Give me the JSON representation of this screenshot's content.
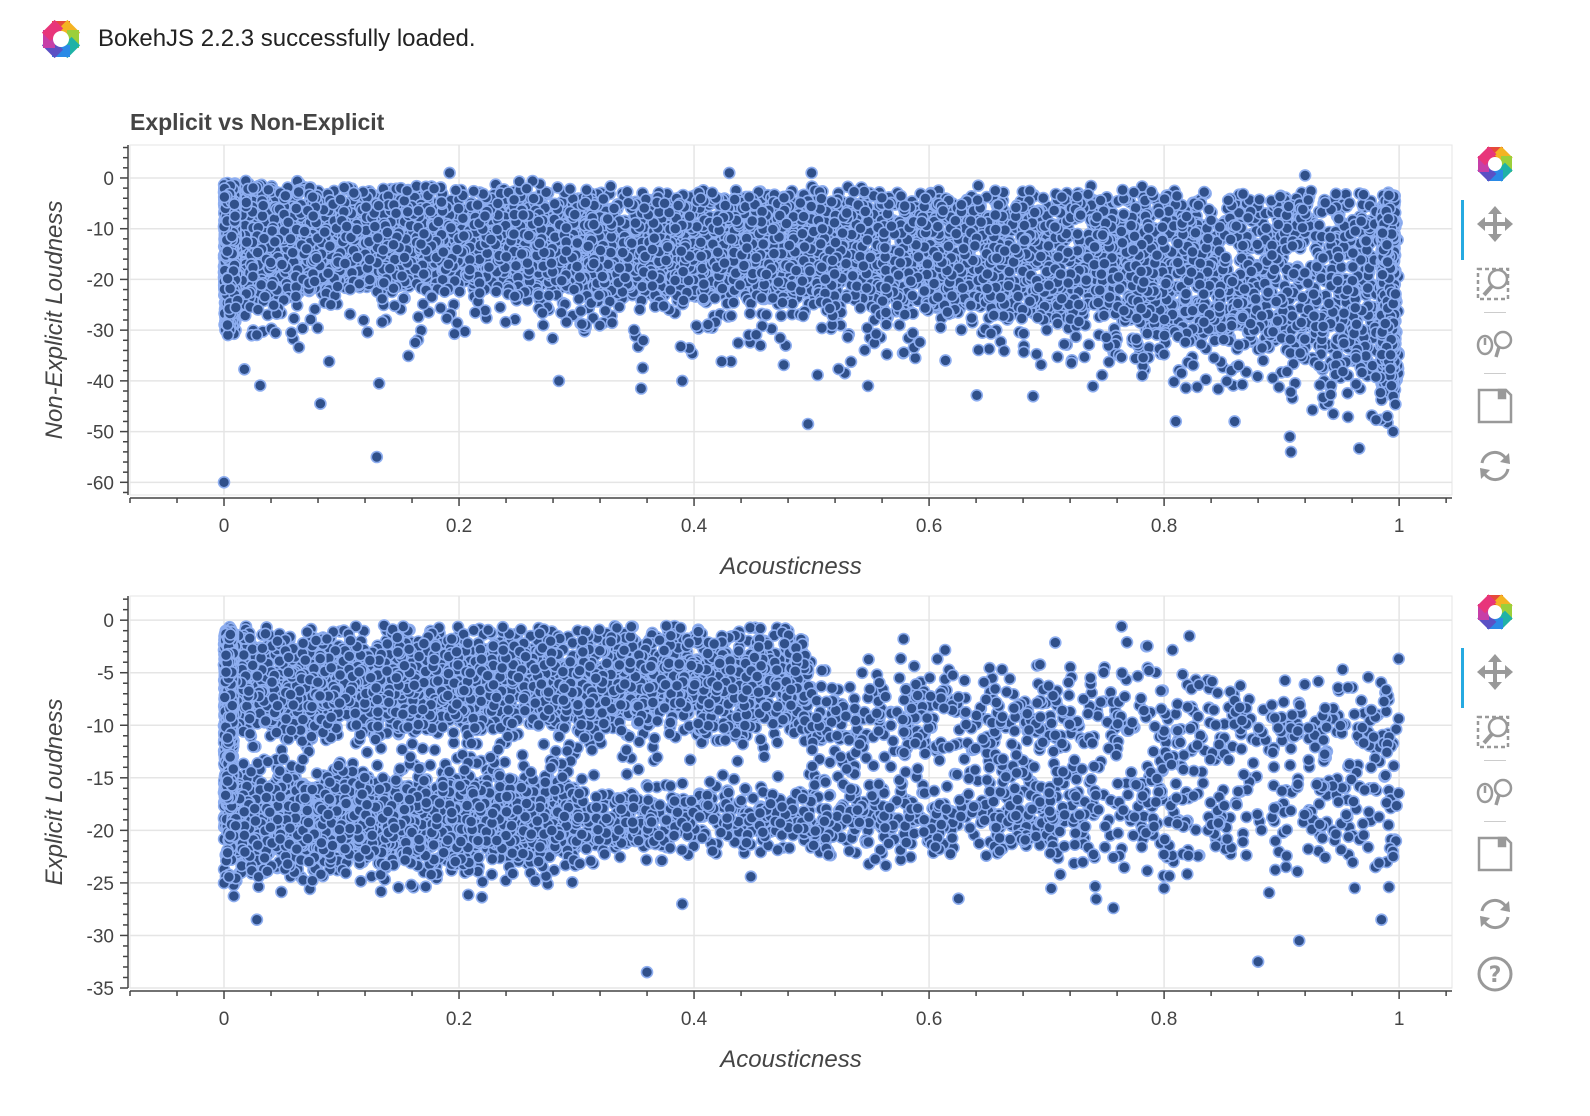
{
  "banner": {
    "message": "BokehJS 2.2.3 successfully loaded."
  },
  "colors": {
    "point_fill": "#30508a",
    "point_line": "#8eaef0",
    "grid": "#e5e5e5",
    "axis": "#444444",
    "tool_active": "#26aae1"
  },
  "toolbar_icons": [
    "bokeh-logo-icon",
    "pan-icon",
    "box-zoom-icon",
    "wheel-zoom-icon",
    "save-icon",
    "reset-icon"
  ],
  "toolbar_icons_bottom": [
    "bokeh-logo-icon",
    "pan-icon",
    "box-zoom-icon",
    "wheel-zoom-icon",
    "save-icon",
    "reset-icon",
    "help-icon"
  ],
  "chart_data": [
    {
      "type": "scatter",
      "title": "Explicit vs Non-Explicit",
      "xlabel": "Acousticness",
      "ylabel": "Non-Explicit Loudness",
      "xlim": [
        -0.08,
        1.045
      ],
      "ylim": [
        -62.5,
        6.5
      ],
      "xticks": [
        0,
        0.2,
        0.4,
        0.6,
        0.8,
        1
      ],
      "xtick_labels": [
        "0",
        "0.2",
        "0.4",
        "0.6",
        "0.8",
        "1"
      ],
      "yticks": [
        0,
        -10,
        -20,
        -30,
        -40,
        -50,
        -60
      ],
      "ytick_labels": [
        "0",
        "-10",
        "-20",
        "-30",
        "-40",
        "-50",
        "-60"
      ],
      "grid": true,
      "band": {
        "x": [
          0,
          0.1,
          0.3,
          0.5,
          0.7,
          0.9,
          1.0
        ],
        "top": [
          -1,
          -2,
          -3,
          -3,
          -3,
          -3,
          -3
        ],
        "bottom": [
          -24,
          -21,
          -22,
          -24,
          -27,
          -33,
          -40
        ]
      },
      "outliers": [
        [
          0,
          -60
        ],
        [
          0.082,
          -44.5
        ],
        [
          0.13,
          -55
        ],
        [
          0.132,
          -40.5
        ],
        [
          0.285,
          -40
        ],
        [
          0.355,
          -41.5
        ],
        [
          0.39,
          -40
        ],
        [
          0.497,
          -48.5
        ],
        [
          0.548,
          -41
        ],
        [
          0.81,
          -48
        ],
        [
          0.86,
          -48
        ],
        [
          0.907,
          -51
        ],
        [
          0.908,
          -54
        ],
        [
          0.995,
          -50
        ],
        [
          0.99,
          -47
        ],
        [
          0.5,
          1
        ],
        [
          0.192,
          1
        ],
        [
          0.43,
          1
        ],
        [
          0.92,
          0.5
        ]
      ]
    },
    {
      "type": "scatter",
      "xlabel": "Acousticness",
      "ylabel": "Explicit Loudness",
      "xlim": [
        -0.08,
        1.045
      ],
      "ylim": [
        -35,
        2.3
      ],
      "xticks": [
        0,
        0.2,
        0.4,
        0.6,
        0.8,
        1
      ],
      "xtick_labels": [
        "0",
        "0.2",
        "0.4",
        "0.6",
        "0.8",
        "1"
      ],
      "yticks": [
        0,
        -5,
        -10,
        -15,
        -20,
        -25,
        -30,
        -35
      ],
      "ytick_labels": [
        "0",
        "-5",
        "-10",
        "-15",
        "-20",
        "-25",
        "-30",
        "-35"
      ],
      "grid": true,
      "clusters": [
        {
          "x": [
            0,
            0.5
          ],
          "y_center": -6,
          "y_spread": 4,
          "count": 3400
        },
        {
          "x": [
            0,
            0.3
          ],
          "y_center": -19,
          "y_spread": 4,
          "count": 2200
        },
        {
          "x": [
            0.3,
            0.7
          ],
          "y_center": -19,
          "y_spread": 3,
          "count": 700
        },
        {
          "x": [
            0.5,
            1.0
          ],
          "y_center": -10,
          "y_spread": 5,
          "count": 650
        },
        {
          "x": [
            0.7,
            1.0
          ],
          "y_center": -19,
          "y_spread": 5,
          "count": 300
        }
      ],
      "outliers": [
        [
          0.028,
          -28.5
        ],
        [
          0.36,
          -33.5
        ],
        [
          0.39,
          -27
        ],
        [
          0.625,
          -26.5
        ],
        [
          0.88,
          -32.5
        ],
        [
          0.915,
          -30.5
        ],
        [
          0.985,
          -28.5
        ],
        [
          0.995,
          -22.5
        ],
        [
          0.8,
          -25.5
        ]
      ]
    }
  ]
}
